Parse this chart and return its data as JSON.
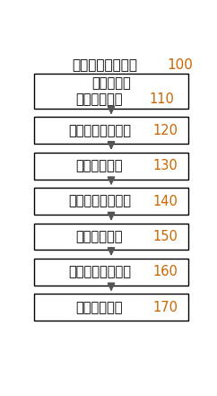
{
  "title_text": "肿瘤分子分型装置",
  "title_number": "100",
  "background_color": "#ffffff",
  "boxes": [
    {
      "line1": "基因拷贝数",
      "line2": "数值计算模块",
      "number": "110",
      "two_line": true
    },
    {
      "line1": "变异基因筛选模块",
      "number": "120",
      "two_line": false
    },
    {
      "line1": "第一聚类模块",
      "number": "130",
      "two_line": false
    },
    {
      "line1": "差异基因筛选模块",
      "number": "140",
      "two_line": false
    },
    {
      "line1": "第二聚类模块",
      "number": "150",
      "two_line": false
    },
    {
      "line1": "预后影响分析模块",
      "number": "160",
      "two_line": false
    },
    {
      "line1": "样本分类模块",
      "number": "170",
      "two_line": false
    }
  ],
  "box_color": "#ffffff",
  "box_edge_color": "#000000",
  "text_color": "#000000",
  "number_color": "#cc6600",
  "title_number_color": "#cc6600",
  "arrow_color": "#555555",
  "font_size": 10.5,
  "number_font_size": 10.5,
  "title_font_size": 11
}
